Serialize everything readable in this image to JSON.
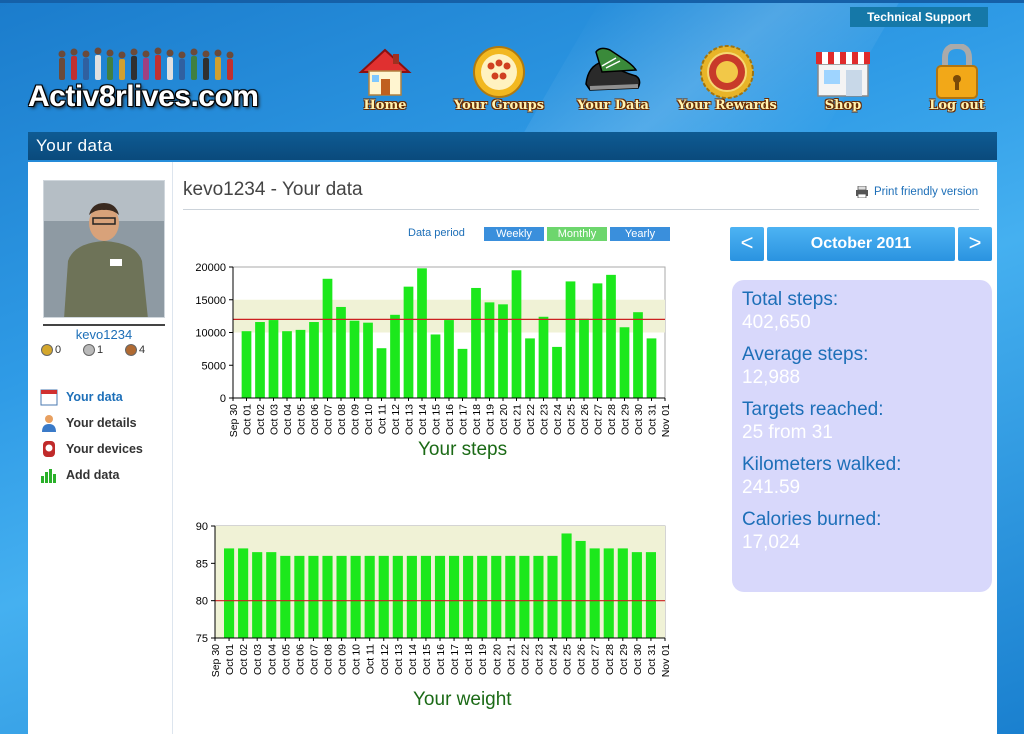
{
  "header": {
    "tech_support": "Technical Support",
    "logo_text": "Activ8rlives.com",
    "nav": [
      {
        "label": "Home",
        "icon": "house-icon"
      },
      {
        "label": "Your Groups",
        "icon": "people-group-icon"
      },
      {
        "label": "Your Data",
        "icon": "sneakers-icon"
      },
      {
        "label": "Your Rewards",
        "icon": "medal-seal-icon"
      },
      {
        "label": "Shop",
        "icon": "shop-icon"
      },
      {
        "label": "Log out",
        "icon": "padlock-icon"
      }
    ]
  },
  "section_title": "Your data",
  "sidebar": {
    "username": "kevo1234",
    "medals": [
      {
        "count": "0",
        "color": "#d4a72c"
      },
      {
        "count": "1",
        "color": "#b9b9b9"
      },
      {
        "count": "4",
        "color": "#b06a32"
      }
    ],
    "menu": [
      {
        "label": "Your data",
        "icon": "calendar-icon",
        "active": true
      },
      {
        "label": "Your details",
        "icon": "user-icon",
        "active": false
      },
      {
        "label": "Your devices",
        "icon": "device-icon",
        "active": false
      },
      {
        "label": "Add data",
        "icon": "bar-chart-icon",
        "active": false
      }
    ]
  },
  "main": {
    "title": "kevo1234 - Your data",
    "print_link": "Print friendly version",
    "period": {
      "label": "Data period",
      "options": [
        {
          "label": "Weekly",
          "color": "#3a8fdc"
        },
        {
          "label": "Monthly",
          "color": "#6dd66d"
        },
        {
          "label": "Yearly",
          "color": "#3a8fdc"
        }
      ]
    },
    "month_nav": {
      "prev": "<",
      "label": "October 2011",
      "next": ">"
    },
    "stats": [
      {
        "label": "Total steps:",
        "value": "402,650"
      },
      {
        "label": "Average steps:",
        "value": "12,988"
      },
      {
        "label": "Targets reached:",
        "value": "25 from 31"
      },
      {
        "label": "Kilometers walked:",
        "value": "241.59"
      },
      {
        "label": "Calories burned:",
        "value": "17,024"
      }
    ]
  },
  "chart_data": [
    {
      "type": "bar",
      "title": "Your steps",
      "categories": [
        "Sep 30",
        "Oct 01",
        "Oct 02",
        "Oct 03",
        "Oct 04",
        "Oct 05",
        "Oct 06",
        "Oct 07",
        "Oct 08",
        "Oct 09",
        "Oct 10",
        "Oct 11",
        "Oct 12",
        "Oct 13",
        "Oct 14",
        "Oct 15",
        "Oct 16",
        "Oct 17",
        "Oct 18",
        "Oct 19",
        "Oct 20",
        "Oct 21",
        "Oct 22",
        "Oct 23",
        "Oct 24",
        "Oct 25",
        "Oct 26",
        "Oct 27",
        "Oct 28",
        "Oct 29",
        "Oct 30",
        "Oct 31",
        "Nov 01"
      ],
      "values": [
        null,
        10200,
        11600,
        11900,
        10200,
        10400,
        11600,
        18200,
        13900,
        11800,
        11500,
        7600,
        12700,
        17000,
        19800,
        9700,
        11900,
        7500,
        16800,
        14600,
        14300,
        19500,
        9100,
        12400,
        7800,
        17800,
        12100,
        17500,
        18800,
        10800,
        13100,
        9100,
        null
      ],
      "yticks": [
        0,
        5000,
        10000,
        15000,
        20000
      ],
      "ylim": [
        0,
        20000
      ],
      "target": 12000,
      "target_band": [
        10000,
        15000
      ],
      "bar_color": "#1ce81c",
      "target_color": "#cc2020",
      "band_color": "#f0f2d6"
    },
    {
      "type": "bar",
      "title": "Your weight",
      "categories": [
        "Sep 30",
        "Oct 01",
        "Oct 02",
        "Oct 03",
        "Oct 04",
        "Oct 05",
        "Oct 06",
        "Oct 07",
        "Oct 08",
        "Oct 09",
        "Oct 10",
        "Oct 11",
        "Oct 12",
        "Oct 13",
        "Oct 14",
        "Oct 15",
        "Oct 16",
        "Oct 17",
        "Oct 18",
        "Oct 19",
        "Oct 20",
        "Oct 21",
        "Oct 22",
        "Oct 23",
        "Oct 24",
        "Oct 25",
        "Oct 26",
        "Oct 27",
        "Oct 28",
        "Oct 29",
        "Oct 30",
        "Oct 31",
        "Nov 01"
      ],
      "values": [
        null,
        87,
        87,
        86.5,
        86.5,
        86,
        86,
        86,
        86,
        86,
        86,
        86,
        86,
        86,
        86,
        86,
        86,
        86,
        86,
        86,
        86,
        86,
        86,
        86,
        86,
        89,
        88,
        87,
        87,
        87,
        86.5,
        86.5,
        null
      ],
      "yticks": [
        75,
        80,
        85,
        90
      ],
      "ylim": [
        75,
        90
      ],
      "target": 80,
      "bar_color": "#1ce81c",
      "target_color": "#cc2020",
      "band_color": "#f0f2d6"
    }
  ]
}
